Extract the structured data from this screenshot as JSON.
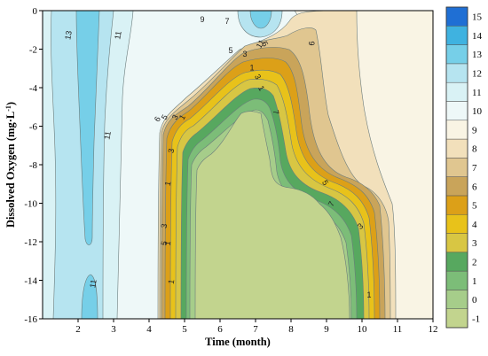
{
  "chart_data": {
    "type": "heatmap",
    "subtype": "filled-contour",
    "title": "",
    "xlabel": "Time (month)",
    "ylabel_main": "Dissolved Oxygen  (mg·L",
    "ylabel_sup": "-1",
    "ylabel_close": ")",
    "xlim": [
      1,
      12
    ],
    "ylim": [
      -16,
      0
    ],
    "x_ticks": [
      "2",
      "3",
      "4",
      "5",
      "6",
      "7",
      "8",
      "9",
      "10",
      "11",
      "12"
    ],
    "y_ticks": [
      "0",
      "-2",
      "-4",
      "-6",
      "-8",
      "-10",
      "-12",
      "-14",
      "-16"
    ],
    "colorbar": {
      "levels": [
        "-1",
        "0",
        "1",
        "2",
        "3",
        "4",
        "5",
        "6",
        "7",
        "8",
        "9",
        "10",
        "11",
        "12",
        "13",
        "14",
        "15"
      ],
      "colors": [
        "#c2d48e",
        "#a6cd8a",
        "#7cbd78",
        "#57a85f",
        "#d8c643",
        "#e8c21a",
        "#dca018",
        "#c9a45a",
        "#e0c690",
        "#f2e0bb",
        "#f9f4e4",
        "#eef8f8",
        "#d9f2f5",
        "#b6e4f0",
        "#76cfe8",
        "#3fb2e0",
        "#1f6fd4"
      ]
    },
    "contour_labels": [
      "13",
      "11",
      "11",
      "9",
      "7",
      "5",
      "3",
      "1",
      "11",
      "6",
      "5",
      "3",
      "1",
      "9",
      "7",
      "7",
      "5",
      "5",
      "3",
      "1",
      "3",
      "3",
      "1",
      "5",
      "1",
      "1",
      "1",
      "11",
      "3"
    ]
  }
}
